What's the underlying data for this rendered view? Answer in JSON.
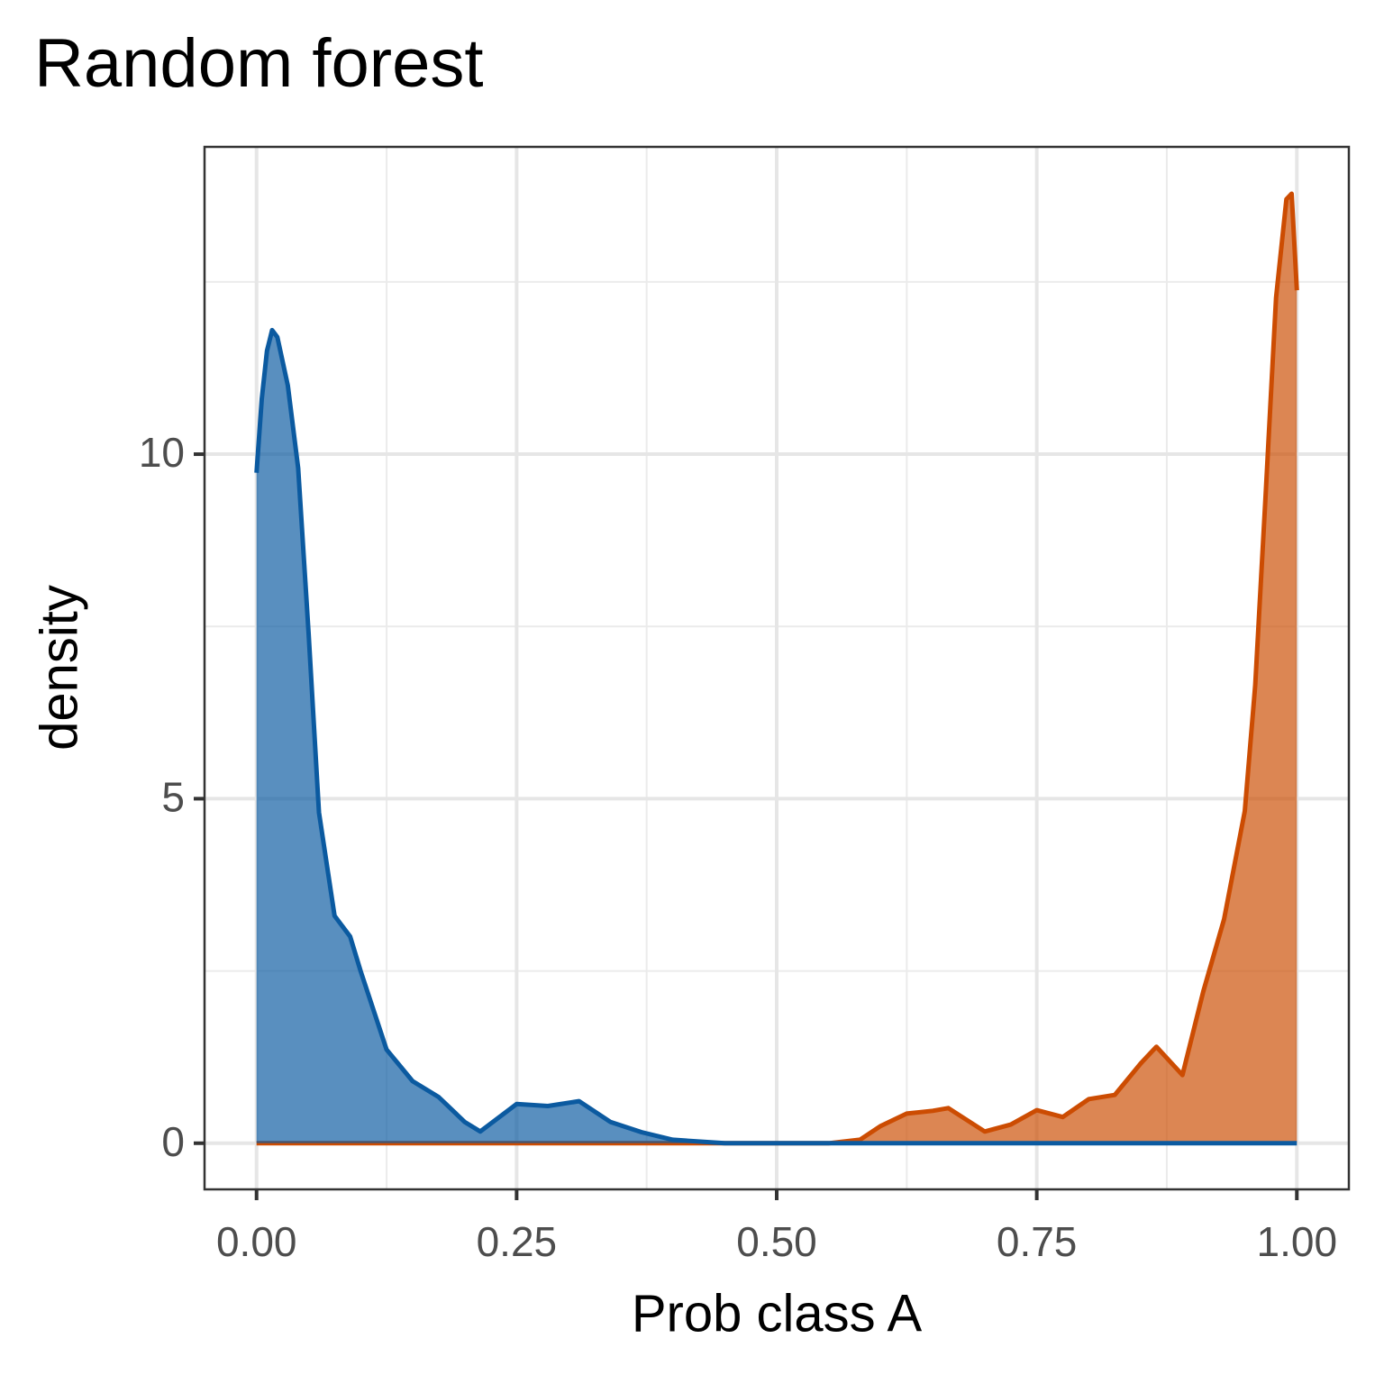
{
  "chart_data": {
    "type": "area",
    "title": "Random forest",
    "xlabel": "Prob class A",
    "ylabel": "density",
    "x": [
      0,
      0.005,
      0.01,
      0.015,
      0.02,
      0.03,
      0.04,
      0.05,
      0.06,
      0.075,
      0.09,
      0.1,
      0.125,
      0.15,
      0.175,
      0.2,
      0.215,
      0.25,
      0.28,
      0.31,
      0.34,
      0.37,
      0.4,
      0.45,
      0.5,
      0.55,
      0.58,
      0.6,
      0.625,
      0.65,
      0.665,
      0.7,
      0.725,
      0.75,
      0.775,
      0.8,
      0.825,
      0.85,
      0.865,
      0.89,
      0.91,
      0.93,
      0.95,
      0.96,
      0.97,
      0.98,
      0.99,
      0.995,
      1.0
    ],
    "series": [
      {
        "color": "#cc4c02",
        "values": [
          0,
          0,
          0,
          0,
          0,
          0,
          0,
          0,
          0,
          0,
          0,
          0,
          0,
          0,
          0,
          0,
          0,
          0,
          0,
          0,
          0,
          0,
          0,
          0,
          0,
          0,
          0.05,
          0.25,
          0.43,
          0.47,
          0.51,
          0.17,
          0.27,
          0.48,
          0.38,
          0.64,
          0.7,
          1.16,
          1.4,
          0.99,
          2.2,
          3.25,
          4.82,
          6.65,
          9.4,
          12.27,
          13.7,
          13.78,
          12.38
        ]
      },
      {
        "color": "#0b5aa0",
        "values": [
          9.73,
          10.8,
          11.5,
          11.8,
          11.7,
          11.0,
          9.8,
          7.4,
          4.8,
          3.3,
          3.0,
          2.5,
          1.36,
          0.9,
          0.67,
          0.31,
          0.17,
          0.57,
          0.54,
          0.61,
          0.31,
          0.16,
          0.05,
          0,
          0,
          0,
          0,
          0,
          0,
          0,
          0,
          0,
          0,
          0,
          0,
          0,
          0,
          0,
          0,
          0,
          0,
          0,
          0,
          0,
          0,
          0,
          0,
          0,
          0
        ]
      }
    ],
    "xlim": [
      -0.05,
      1.05
    ],
    "ylim": [
      -0.67,
      14.46
    ],
    "xticks": [
      {
        "value": 0,
        "label": "0.00"
      },
      {
        "value": 0.25,
        "label": "0.25"
      },
      {
        "value": 0.5,
        "label": "0.50"
      },
      {
        "value": 0.75,
        "label": "0.75"
      },
      {
        "value": 1,
        "label": "1.00"
      }
    ],
    "yticks": [
      0,
      5,
      10
    ],
    "grid": true,
    "fill_opacity": 0.68
  }
}
